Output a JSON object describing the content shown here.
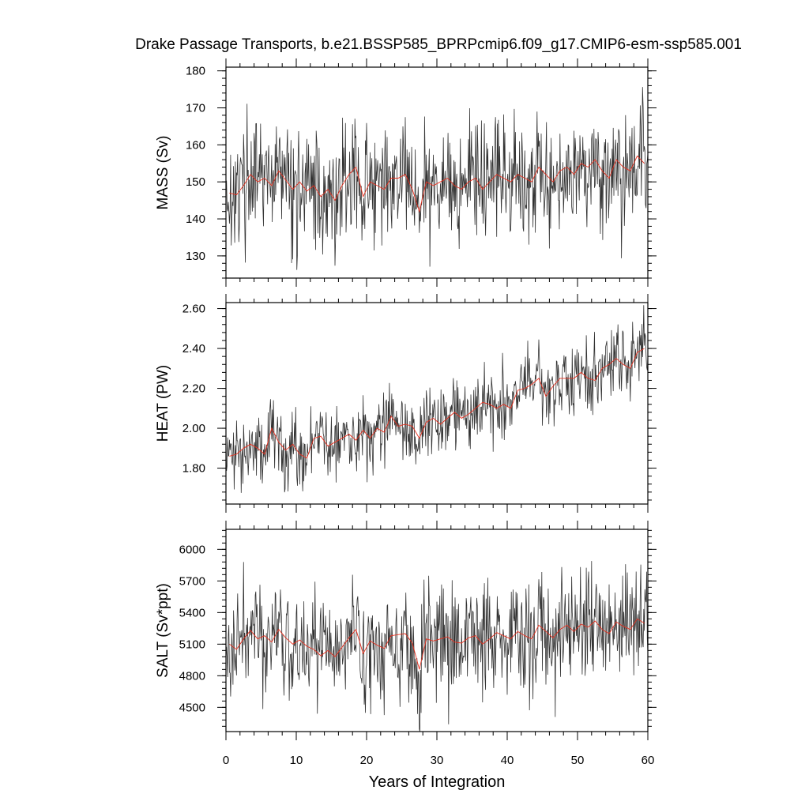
{
  "title": "Drake Passage Transports, b.e21.BSSP585_BPRPcmip6.f09_g17.CMIP6-esm-ssp585.001",
  "colors": {
    "monthly_line": "#333333",
    "annual_line": "#e8301f",
    "axes": "#000000"
  },
  "chart_data": [
    {
      "type": "line",
      "ylabel": "MASS (Sv)",
      "ylim": [
        124,
        181
      ],
      "yticks": [
        130,
        140,
        150,
        160,
        170,
        180
      ],
      "ytick_labels": [
        "130",
        "140",
        "150",
        "160",
        "170",
        "180"
      ],
      "xlim": [
        0,
        60
      ],
      "series": [
        {
          "values_annual": [
            147.0,
            146.5,
            149.0,
            152.0,
            150.0,
            151.0,
            149.0,
            153.0,
            150.5,
            148.0,
            150.0,
            147.5,
            149.0,
            146.0,
            148.0,
            145.0,
            149.0,
            152.0,
            154.0,
            146.0,
            150.0,
            149.0,
            148.0,
            151.0,
            151.0,
            152.0,
            148.0,
            142.0,
            150.0,
            149.0,
            150.0,
            151.0,
            149.0,
            148.0,
            150.0,
            151.0,
            148.0,
            150.0,
            152.0,
            151.0,
            150.0,
            152.0,
            151.0,
            150.0,
            154.0,
            152.0,
            150.0,
            153.0,
            154.0,
            152.0,
            155.0,
            154.0,
            156.0,
            153.0,
            151.0,
            156.0,
            154.0,
            153.0,
            157.0,
            155.0
          ]
        }
      ],
      "mean": 150,
      "spread": 9.5
    },
    {
      "type": "line",
      "ylabel": "HEAT (PW)",
      "ylim": [
        1.62,
        2.63
      ],
      "yticks": [
        1.8,
        2.0,
        2.2,
        2.4,
        2.6
      ],
      "ytick_labels": [
        "1.80",
        "2.00",
        "2.20",
        "2.40",
        "2.60"
      ],
      "xlim": [
        0,
        60
      ],
      "series": [
        {
          "values_annual": [
            1.86,
            1.87,
            1.9,
            1.92,
            1.9,
            1.87,
            2.0,
            1.93,
            1.89,
            1.92,
            1.87,
            1.85,
            1.95,
            1.96,
            1.91,
            1.93,
            1.95,
            1.97,
            1.94,
            1.99,
            1.95,
            2.0,
            1.98,
            2.06,
            2.01,
            2.02,
            2.01,
            1.95,
            2.03,
            2.05,
            2.02,
            2.05,
            2.08,
            2.05,
            2.07,
            2.1,
            2.13,
            2.12,
            2.1,
            2.12,
            2.1,
            2.19,
            2.2,
            2.22,
            2.25,
            2.16,
            2.21,
            2.25,
            2.25,
            2.25,
            2.28,
            2.25,
            2.24,
            2.3,
            2.32,
            2.35,
            2.32,
            2.3,
            2.38,
            2.4
          ]
        }
      ],
      "spread": 0.11
    },
    {
      "type": "line",
      "ylabel": "SALT (Sv*ppt)",
      "xlabel": "Years of Integration",
      "ylim": [
        4270,
        6190
      ],
      "yticks": [
        4500,
        4800,
        5100,
        5400,
        5700,
        6000
      ],
      "ytick_labels": [
        "4500",
        "4800",
        "5100",
        "5400",
        "5700",
        "6000"
      ],
      "xlim": [
        0,
        60
      ],
      "xticks": [
        0,
        10,
        20,
        30,
        40,
        50,
        60
      ],
      "xtick_labels": [
        "0",
        "10",
        "20",
        "30",
        "40",
        "50",
        "60"
      ],
      "series": [
        {
          "values_annual": [
            5100,
            5050,
            5150,
            5230,
            5150,
            5180,
            5120,
            5240,
            5160,
            5100,
            5140,
            5080,
            5050,
            4990,
            5040,
            4980,
            5070,
            5160,
            5240,
            5010,
            5130,
            5090,
            5060,
            5180,
            5190,
            5200,
            5110,
            4860,
            5150,
            5130,
            5150,
            5170,
            5120,
            5110,
            5160,
            5180,
            5100,
            5150,
            5210,
            5180,
            5150,
            5220,
            5180,
            5150,
            5280,
            5220,
            5160,
            5240,
            5280,
            5220,
            5290,
            5260,
            5320,
            5240,
            5200,
            5310,
            5270,
            5240,
            5340,
            5300
          ]
        }
      ],
      "spread": 320
    }
  ]
}
